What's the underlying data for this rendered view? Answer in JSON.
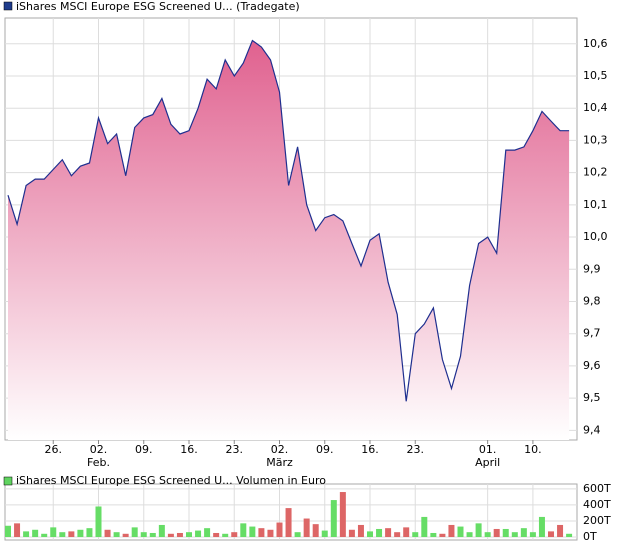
{
  "chart_data": [
    {
      "type": "area",
      "legend": "iShares MSCI Europe ESG Screened U... (Tradegate)",
      "legend_color": "#1f3c8c",
      "categories": [
        null,
        null,
        null,
        null,
        null,
        null,
        null,
        null,
        null,
        null,
        null,
        null,
        null,
        null,
        null,
        null,
        null,
        null,
        null,
        null,
        null,
        null,
        null,
        null,
        null,
        null,
        null,
        null,
        null,
        null,
        null,
        null,
        null,
        null,
        null,
        null,
        null,
        null,
        null,
        null,
        null,
        null,
        null,
        null,
        null,
        null,
        null,
        null,
        null,
        null,
        null,
        null,
        null,
        null,
        null,
        null,
        null,
        null,
        null,
        null,
        null,
        null,
        null
      ],
      "series": [
        {
          "color": "#1f2f8f",
          "values": [
            10.13,
            10.04,
            10.16,
            10.18,
            10.18,
            10.21,
            10.24,
            10.19,
            10.22,
            10.23,
            10.37,
            10.29,
            10.32,
            10.19,
            10.34,
            10.37,
            10.38,
            10.43,
            10.35,
            10.32,
            10.33,
            10.4,
            10.49,
            10.46,
            10.55,
            10.5,
            10.54,
            10.61,
            10.59,
            10.55,
            10.45,
            10.16,
            10.28,
            10.1,
            10.02,
            10.06,
            10.07,
            10.05,
            9.98,
            9.91,
            9.99,
            10.01,
            9.86,
            9.76,
            9.49,
            9.7,
            9.73,
            9.78,
            9.62,
            9.53,
            9.63,
            9.85,
            9.98,
            10.0,
            9.95,
            10.27,
            10.27,
            10.28,
            10.33,
            10.39,
            10.36,
            10.33,
            10.33
          ]
        }
      ],
      "fill_color": "#e0618f",
      "ylim": [
        9.37,
        10.68
      ],
      "yticks": [
        {
          "value": 9.4,
          "label": "9,4"
        },
        {
          "value": 9.5,
          "label": "9,5"
        },
        {
          "value": 9.6,
          "label": "9,6"
        },
        {
          "value": 9.7,
          "label": "9,7"
        },
        {
          "value": 9.8,
          "label": "9,8"
        },
        {
          "value": 9.9,
          "label": "9,9"
        },
        {
          "value": 10.0,
          "label": "10,0"
        },
        {
          "value": 10.1,
          "label": "10,1"
        },
        {
          "value": 10.2,
          "label": "10,2"
        },
        {
          "value": 10.3,
          "label": "10,3"
        },
        {
          "value": 10.4,
          "label": "10,4"
        },
        {
          "value": 10.5,
          "label": "10,5"
        },
        {
          "value": 10.6,
          "label": "10,6"
        }
      ],
      "xticks": [
        {
          "value": 5,
          "label": "26."
        },
        {
          "value": 10,
          "label": "02."
        },
        {
          "value": 15,
          "label": "09."
        },
        {
          "value": 20,
          "label": "16."
        },
        {
          "value": 25,
          "label": "23."
        },
        {
          "value": 30,
          "label": "02."
        },
        {
          "value": 35,
          "label": "09."
        },
        {
          "value": 40,
          "label": "16."
        },
        {
          "value": 45,
          "label": "23."
        },
        {
          "value": 53,
          "label": "01."
        },
        {
          "value": 58,
          "label": "10."
        }
      ],
      "x_months": [
        {
          "value": 10,
          "label": "Feb."
        },
        {
          "value": 30,
          "label": "März"
        },
        {
          "value": 53,
          "label": "April"
        }
      ],
      "grid": true
    },
    {
      "type": "bar",
      "legend": "iShares MSCI Europe ESG Screened U... Volumen in Euro",
      "legend_color": "#5fd35f",
      "up_color": "#66dd66",
      "down_color": "#dd6666",
      "values": [
        140,
        170,
        70,
        90,
        40,
        120,
        60,
        70,
        90,
        110,
        380,
        90,
        60,
        40,
        120,
        60,
        50,
        150,
        40,
        50,
        60,
        80,
        110,
        50,
        40,
        60,
        170,
        130,
        110,
        90,
        180,
        360,
        60,
        230,
        160,
        80,
        460,
        560,
        90,
        150,
        70,
        100,
        110,
        60,
        120,
        60,
        250,
        50,
        40,
        150,
        130,
        60,
        170,
        60,
        100,
        100,
        60,
        110,
        60,
        250,
        70,
        150,
        40
      ],
      "ylim": [
        0,
        660
      ],
      "yticks": [
        {
          "value": 0,
          "label": "0T"
        },
        {
          "value": 200,
          "label": "200T"
        },
        {
          "value": 400,
          "label": "400T"
        },
        {
          "value": 600,
          "label": "600T"
        }
      ],
      "grid": true
    }
  ]
}
